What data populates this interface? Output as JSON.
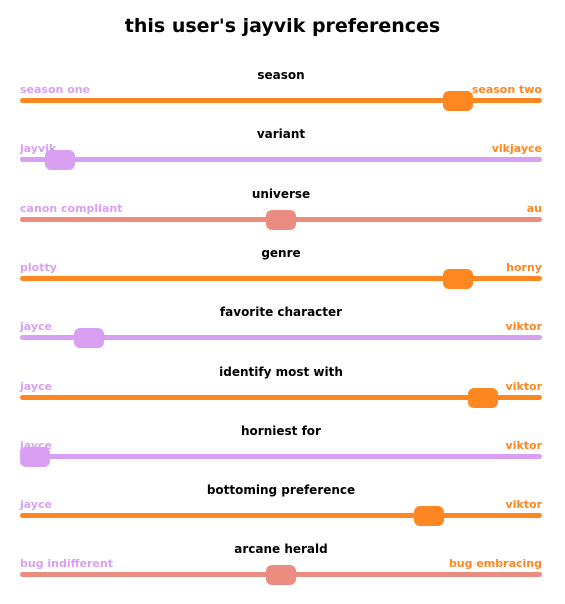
{
  "title": "this user's jayvik preferences",
  "colors": {
    "orange": "#fe8722",
    "lilac": "#d89ff2",
    "salmon": "#eb8c80"
  },
  "sliders": [
    {
      "name": "season",
      "left": "season one",
      "right": "season two",
      "value": 0.86,
      "track": "orange",
      "thumb": "orange",
      "left_color": "lilac",
      "right_color": "orange"
    },
    {
      "name": "variant",
      "left": "jayvik",
      "right": "vikjayce",
      "value": 0.05,
      "track": "lilac",
      "thumb": "lilac",
      "left_color": "lilac",
      "right_color": "orange"
    },
    {
      "name": "universe",
      "left": "canon compliant",
      "right": "au",
      "value": 0.5,
      "track": "salmon",
      "thumb": "salmon",
      "left_color": "lilac",
      "right_color": "orange"
    },
    {
      "name": "genre",
      "left": "plotty",
      "right": "horny",
      "value": 0.86,
      "track": "orange",
      "thumb": "orange",
      "left_color": "lilac",
      "right_color": "orange"
    },
    {
      "name": "favorite character",
      "left": "jayce",
      "right": "viktor",
      "value": 0.11,
      "track": "lilac",
      "thumb": "lilac",
      "left_color": "lilac",
      "right_color": "orange"
    },
    {
      "name": "identify most with",
      "left": "jayce",
      "right": "viktor",
      "value": 0.91,
      "track": "orange",
      "thumb": "orange",
      "left_color": "lilac",
      "right_color": "orange"
    },
    {
      "name": "horniest for",
      "left": "jayce",
      "right": "viktor",
      "value": 0.0,
      "track": "lilac",
      "thumb": "lilac",
      "left_color": "lilac",
      "right_color": "orange"
    },
    {
      "name": "bottoming preference",
      "left": "jayce",
      "right": "viktor",
      "value": 0.8,
      "track": "orange",
      "thumb": "orange",
      "left_color": "lilac",
      "right_color": "orange"
    },
    {
      "name": "arcane herald",
      "left": "bug indifferent",
      "right": "bug embracing",
      "value": 0.5,
      "track": "salmon",
      "thumb": "salmon",
      "left_color": "lilac",
      "right_color": "orange"
    }
  ]
}
